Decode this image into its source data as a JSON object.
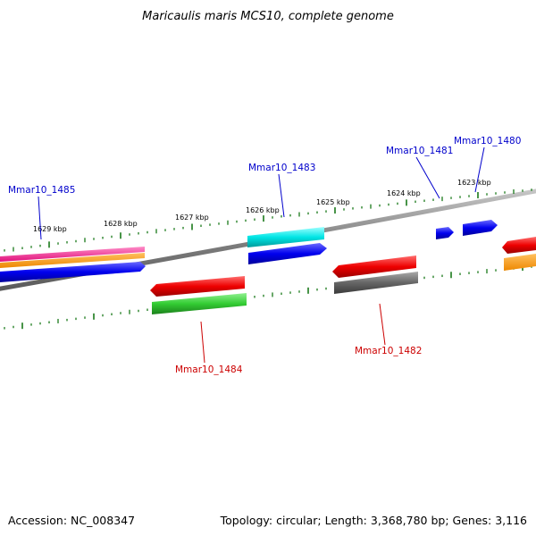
{
  "title": "Maricaulis maris MCS10, complete genome",
  "footer": {
    "accession": "Accession: NC_008347",
    "summary": "Topology: circular; Length: 3,368,780 bp; Genes: 3,116"
  },
  "ruler": {
    "labels": [
      "1629 kbp",
      "1628 kbp",
      "1627 kbp",
      "1626 kbp",
      "1625 kbp",
      "1624 kbp",
      "1623 kbp"
    ]
  },
  "gene_labels": [
    {
      "name": "Mmar10_1485",
      "color": "#0000cc"
    },
    {
      "name": "Mmar10_1483",
      "color": "#0000cc"
    },
    {
      "name": "Mmar10_1481",
      "color": "#0000cc"
    },
    {
      "name": "Mmar10_1480",
      "color": "#0000cc"
    },
    {
      "name": "Mmar10_1484",
      "color": "#cc0000"
    },
    {
      "name": "Mmar10_1482",
      "color": "#cc0000"
    }
  ],
  "colors": {
    "forward_cds": "#0000ee",
    "reverse_cds": "#ee0000",
    "backbone": "#888888",
    "tick": "#1a7a1a",
    "trna": "#00e5e5",
    "rrna": "#33cc33",
    "pseudo": "#666666",
    "misc_pink": "#ff1493",
    "misc_orange": "#ff9900"
  }
}
